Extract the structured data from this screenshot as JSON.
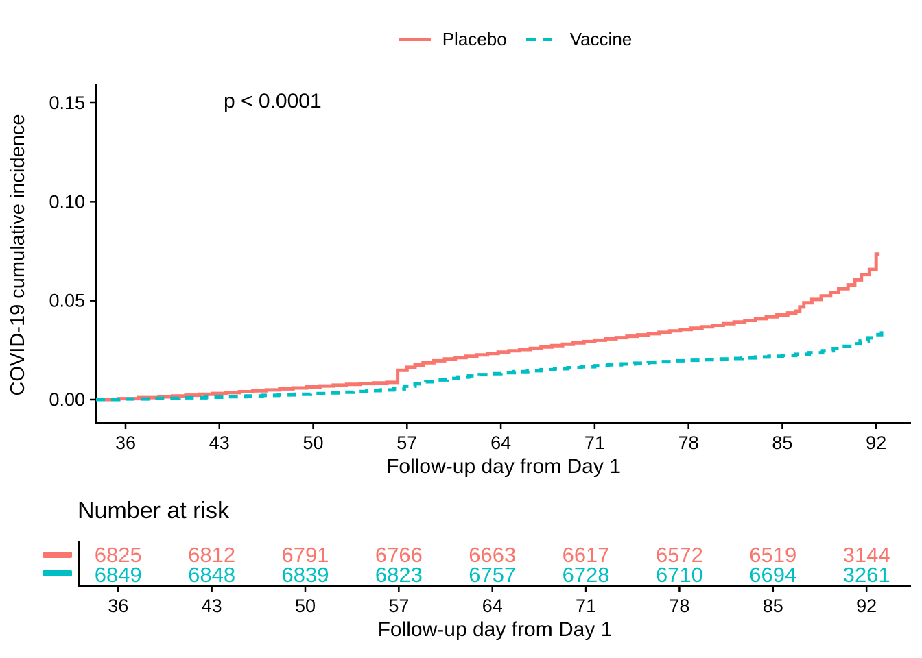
{
  "chart_data": {
    "type": "line",
    "subtype": "kaplan-meier-cumulative-incidence",
    "title": "",
    "annotation_p_value": "p < 0.0001",
    "xlabel": "Follow-up day from Day 1",
    "ylabel": "COVID-19 cumulative incidence",
    "x_ticks": [
      36,
      43,
      50,
      57,
      64,
      71,
      78,
      85,
      92
    ],
    "y_tick_labels": [
      "0.00",
      "0.05",
      "0.10",
      "0.15"
    ],
    "xlim": [
      33.8,
      94.6
    ],
    "ylim": [
      0,
      0.155
    ],
    "grid": false,
    "background": "#ffffff",
    "axis_color": "#000000",
    "legend": {
      "position": "top",
      "entries": [
        {
          "label": "Placebo",
          "color": "#F8766D",
          "dash": "solid"
        },
        {
          "label": "Vaccine",
          "color": "#00BFC4",
          "dash": "dashed"
        }
      ]
    },
    "series": [
      {
        "name": "Placebo",
        "color": "#F8766D",
        "style": "solid",
        "step": true,
        "points": [
          [
            33.8,
            0.0
          ],
          [
            35.5,
            0.0005
          ],
          [
            37.0,
            0.001
          ],
          [
            38.5,
            0.0014
          ],
          [
            39.5,
            0.0018
          ],
          [
            40.5,
            0.0022
          ],
          [
            41.5,
            0.0027
          ],
          [
            42.5,
            0.0031
          ],
          [
            43.5,
            0.0035
          ],
          [
            44.5,
            0.004
          ],
          [
            45.5,
            0.0044
          ],
          [
            46.5,
            0.0049
          ],
          [
            47.5,
            0.0054
          ],
          [
            48.5,
            0.0059
          ],
          [
            49.5,
            0.0064
          ],
          [
            50.5,
            0.0069
          ],
          [
            51.5,
            0.0073
          ],
          [
            52.5,
            0.0077
          ],
          [
            53.5,
            0.0081
          ],
          [
            54.5,
            0.0084
          ],
          [
            55.5,
            0.0087
          ],
          [
            56.3,
            0.0148
          ],
          [
            57.0,
            0.0163
          ],
          [
            57.6,
            0.0175
          ],
          [
            58.2,
            0.0186
          ],
          [
            59.0,
            0.0196
          ],
          [
            59.8,
            0.0205
          ],
          [
            60.6,
            0.0212
          ],
          [
            61.4,
            0.0219
          ],
          [
            62.2,
            0.0226
          ],
          [
            63.0,
            0.0233
          ],
          [
            63.8,
            0.024
          ],
          [
            64.6,
            0.0247
          ],
          [
            65.4,
            0.0253
          ],
          [
            66.2,
            0.0259
          ],
          [
            67.0,
            0.0266
          ],
          [
            67.8,
            0.0273
          ],
          [
            68.6,
            0.028
          ],
          [
            69.4,
            0.0287
          ],
          [
            70.2,
            0.0293
          ],
          [
            71.0,
            0.03
          ],
          [
            71.8,
            0.0307
          ],
          [
            72.6,
            0.0313
          ],
          [
            73.4,
            0.032
          ],
          [
            74.2,
            0.0327
          ],
          [
            75.0,
            0.0333
          ],
          [
            75.8,
            0.034
          ],
          [
            76.6,
            0.0347
          ],
          [
            77.4,
            0.0354
          ],
          [
            78.2,
            0.0361
          ],
          [
            79.0,
            0.0368
          ],
          [
            79.8,
            0.0376
          ],
          [
            80.6,
            0.0384
          ],
          [
            81.4,
            0.0392
          ],
          [
            82.2,
            0.04
          ],
          [
            83.0,
            0.0409
          ],
          [
            83.8,
            0.0418
          ],
          [
            84.6,
            0.0428
          ],
          [
            85.4,
            0.0438
          ],
          [
            86.0,
            0.0447
          ],
          [
            86.3,
            0.0468
          ],
          [
            86.6,
            0.0489
          ],
          [
            87.2,
            0.0506
          ],
          [
            87.9,
            0.0524
          ],
          [
            88.6,
            0.0542
          ],
          [
            89.2,
            0.056
          ],
          [
            89.9,
            0.058
          ],
          [
            90.4,
            0.0605
          ],
          [
            90.9,
            0.0632
          ],
          [
            91.5,
            0.0658
          ],
          [
            92.0,
            0.0735
          ],
          [
            92.25,
            0.0735
          ]
        ]
      },
      {
        "name": "Vaccine",
        "color": "#00BFC4",
        "style": "dashed",
        "step": true,
        "points": [
          [
            33.8,
            0.0
          ],
          [
            36.0,
            0.0003
          ],
          [
            38.0,
            0.0006
          ],
          [
            40.0,
            0.0009
          ],
          [
            42.0,
            0.0012
          ],
          [
            43.5,
            0.0015
          ],
          [
            45.0,
            0.0018
          ],
          [
            46.2,
            0.0021
          ],
          [
            47.4,
            0.0024
          ],
          [
            48.6,
            0.0027
          ],
          [
            49.8,
            0.003
          ],
          [
            51.0,
            0.0034
          ],
          [
            52.0,
            0.0037
          ],
          [
            53.0,
            0.0041
          ],
          [
            54.0,
            0.0045
          ],
          [
            55.0,
            0.0049
          ],
          [
            56.0,
            0.0054
          ],
          [
            56.8,
            0.0068
          ],
          [
            57.6,
            0.008
          ],
          [
            58.4,
            0.009
          ],
          [
            59.2,
            0.0099
          ],
          [
            60.0,
            0.0107
          ],
          [
            60.8,
            0.0114
          ],
          [
            61.6,
            0.012
          ],
          [
            62.4,
            0.0126
          ],
          [
            63.2,
            0.0131
          ],
          [
            64.0,
            0.0136
          ],
          [
            65.0,
            0.0141
          ],
          [
            66.0,
            0.0146
          ],
          [
            67.0,
            0.0151
          ],
          [
            68.0,
            0.0156
          ],
          [
            69.0,
            0.0161
          ],
          [
            70.0,
            0.0166
          ],
          [
            71.0,
            0.0171
          ],
          [
            72.0,
            0.0176
          ],
          [
            73.0,
            0.018
          ],
          [
            74.0,
            0.0184
          ],
          [
            75.0,
            0.0188
          ],
          [
            76.0,
            0.0192
          ],
          [
            77.0,
            0.0196
          ],
          [
            78.0,
            0.0199
          ],
          [
            79.0,
            0.0202
          ],
          [
            80.0,
            0.0205
          ],
          [
            81.0,
            0.0208
          ],
          [
            82.0,
            0.0211
          ],
          [
            83.0,
            0.0215
          ],
          [
            84.0,
            0.0219
          ],
          [
            85.0,
            0.0223
          ],
          [
            86.0,
            0.0229
          ],
          [
            87.0,
            0.0237
          ],
          [
            88.0,
            0.0247
          ],
          [
            88.8,
            0.0258
          ],
          [
            89.5,
            0.0269
          ],
          [
            90.2,
            0.0282
          ],
          [
            90.8,
            0.0296
          ],
          [
            91.4,
            0.0312
          ],
          [
            91.9,
            0.0328
          ],
          [
            92.4,
            0.0345
          ]
        ]
      }
    ],
    "risk_table": {
      "title": "Number at risk",
      "xlabel": "Follow-up day from Day 1",
      "times": [
        36,
        43,
        50,
        57,
        64,
        71,
        78,
        85,
        92
      ],
      "rows": [
        {
          "name": "Placebo",
          "color": "#F8766D",
          "counts": [
            6825,
            6812,
            6791,
            6766,
            6663,
            6617,
            6572,
            6519,
            3144
          ]
        },
        {
          "name": "Vaccine",
          "color": "#00BFC4",
          "counts": [
            6849,
            6848,
            6839,
            6823,
            6757,
            6728,
            6710,
            6694,
            3261
          ]
        }
      ]
    }
  }
}
